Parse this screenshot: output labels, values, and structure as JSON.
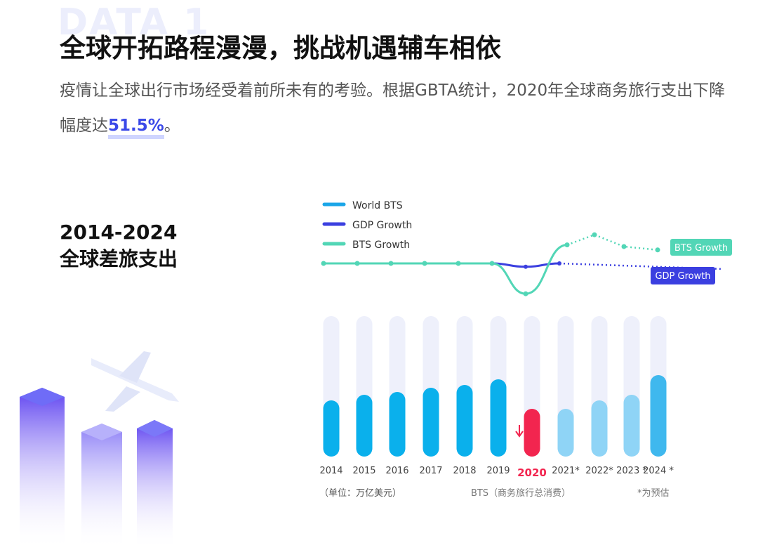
{
  "background_word": "DATA 1",
  "title": "全球开拓路程漫漫，挑战机遇辅车相依",
  "desc_before": "疫情让全球出行市场经受着前所未有的考验。根据GBTA统计，2020年全球商务旅行支出下降幅度达",
  "desc_highlight": "51.5%",
  "desc_after": "。",
  "subtitle_line1": "2014-2024",
  "subtitle_line2": "全球差旅支出",
  "chart_data": {
    "type": "bar",
    "categories": [
      "2014",
      "2015",
      "2016",
      "2017",
      "2018",
      "2019",
      "2020",
      "2021*",
      "2022*",
      "2023 *",
      "2024 *"
    ],
    "highlight_category": "2020",
    "bar_fill_fraction": [
      0.4,
      0.44,
      0.46,
      0.49,
      0.51,
      0.55,
      0.34,
      0.34,
      0.4,
      0.44,
      0.58
    ],
    "forecast_from": "2021*",
    "series": [
      {
        "name": "World BTS",
        "color": "#1aa6e8"
      },
      {
        "name": "GDP Growth",
        "color": "#3b3fe0",
        "relative_level": [
          0,
          0,
          0,
          0,
          0,
          0,
          -0.1,
          0,
          null,
          null,
          -0.15
        ],
        "tag": "GDP Growth"
      },
      {
        "name": "BTS Growth",
        "color": "#52d6b6",
        "relative_level": [
          0,
          0,
          0,
          0,
          0,
          0,
          -0.9,
          0.55,
          0.85,
          0.5,
          0.4
        ],
        "tag": "BTS Growth"
      }
    ],
    "colors": {
      "bar": "#0ab0ec",
      "bar_highlight": "#f2254f",
      "bar_forecast": "#8fd4f6",
      "track": "#eef0fb"
    },
    "unit_label": "（单位：万亿美元）",
    "xlabel": "BTS（商务旅行总消费）",
    "note": "*为预估",
    "legend": "top-left",
    "grid": false
  }
}
